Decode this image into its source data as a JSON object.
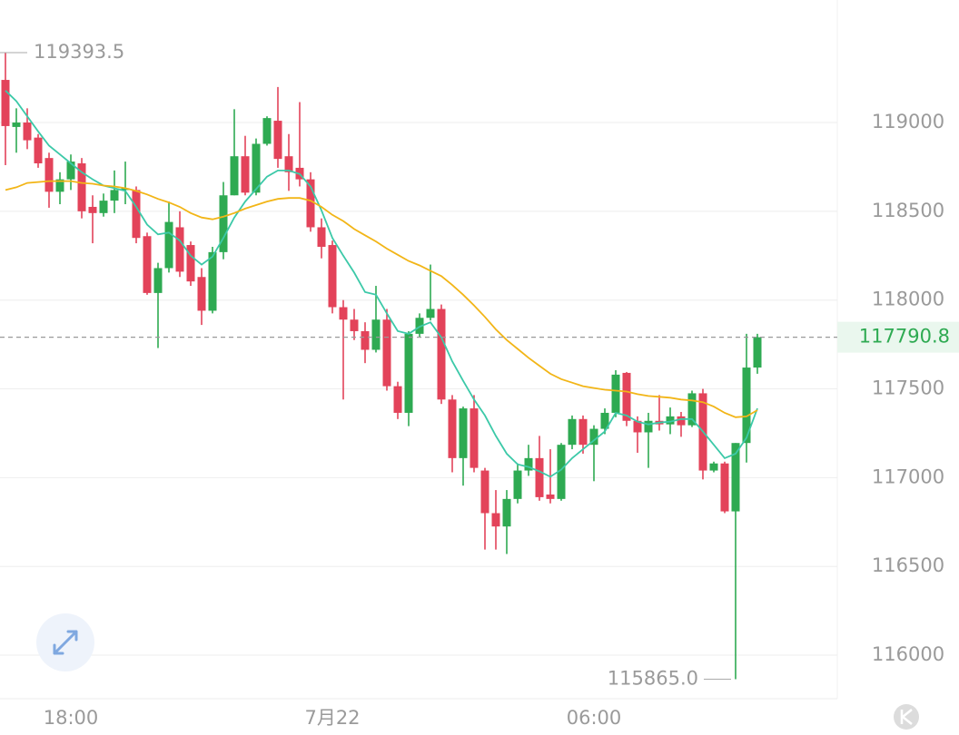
{
  "chart_data": {
    "type": "candlestick",
    "categories": [
      null,
      null,
      null,
      null,
      null,
      null,
      "18:00",
      null,
      null,
      null,
      null,
      null,
      null,
      null,
      null,
      null,
      null,
      null,
      null,
      null,
      null,
      null,
      null,
      null,
      null,
      null,
      null,
      null,
      null,
      null,
      "7月22",
      null,
      null,
      null,
      null,
      null,
      null,
      null,
      null,
      null,
      null,
      null,
      null,
      null,
      null,
      null,
      null,
      null,
      null,
      null,
      null,
      null,
      null,
      null,
      "06:00",
      null,
      null,
      null,
      null,
      null,
      null,
      null,
      null,
      null,
      null,
      null,
      null,
      null,
      null,
      null
    ],
    "open": [
      119240,
      118975,
      119000,
      118915,
      118800,
      118610,
      118680,
      118770,
      118525,
      118490,
      118560,
      118620,
      118620,
      118360,
      118040,
      118180,
      118410,
      118310,
      118130,
      117940,
      118270,
      118590,
      118810,
      118605,
      118880,
      119010,
      118810,
      118745,
      118680,
      118410,
      118310,
      117960,
      117890,
      117825,
      117720,
      117890,
      117515,
      117365,
      117810,
      117900,
      117950,
      117440,
      117110,
      117390,
      117040,
      116800,
      116725,
      116880,
      117040,
      117110,
      116905,
      116880,
      117185,
      117330,
      117185,
      117275,
      117365,
      117590,
      117320,
      117255,
      117320,
      117300,
      117345,
      117295,
      117475,
      117040,
      117080,
      116810,
      117195,
      117620
    ],
    "high": [
      119393.5,
      119080,
      119080,
      118935,
      118830,
      118720,
      118820,
      118800,
      118590,
      118600,
      118730,
      118780,
      118640,
      118380,
      118210,
      118555,
      118500,
      118330,
      118180,
      118300,
      118665,
      119075,
      118925,
      118910,
      119035,
      119200,
      118935,
      119115,
      118720,
      118460,
      118335,
      118000,
      117950,
      117875,
      118080,
      117950,
      117540,
      117825,
      117925,
      118200,
      117975,
      117465,
      117400,
      117465,
      117055,
      116930,
      116930,
      117080,
      117185,
      117235,
      117160,
      117195,
      117350,
      117350,
      117295,
      117390,
      117605,
      117595,
      117345,
      117365,
      117465,
      117395,
      117370,
      117490,
      117500,
      117090,
      117090,
      117195,
      117810,
      117810
    ],
    "low": [
      118760,
      118830,
      118850,
      118745,
      118520,
      118540,
      118620,
      118460,
      118320,
      118470,
      118490,
      118540,
      118320,
      118030,
      117730,
      118155,
      118130,
      118080,
      117860,
      117925,
      118230,
      118590,
      118590,
      118590,
      118870,
      118745,
      118615,
      118640,
      118385,
      118235,
      117925,
      117440,
      117775,
      117645,
      117705,
      117490,
      117330,
      117290,
      117790,
      117885,
      117415,
      117030,
      116955,
      117030,
      116595,
      116595,
      116570,
      116855,
      117010,
      116870,
      116855,
      116870,
      117160,
      117135,
      116980,
      117245,
      117340,
      117290,
      117140,
      117055,
      117265,
      117245,
      117230,
      117285,
      116990,
      117030,
      116800,
      115865,
      117085,
      117585
    ],
    "close": [
      118980,
      119000,
      118900,
      118770,
      118610,
      118680,
      118780,
      118500,
      118490,
      118560,
      118620,
      118630,
      118350,
      118040,
      118180,
      118440,
      118160,
      118105,
      117940,
      118270,
      118590,
      118810,
      118605,
      118880,
      119025,
      118795,
      118720,
      118680,
      118410,
      118300,
      117960,
      117890,
      117825,
      117720,
      117890,
      117515,
      117365,
      117810,
      117900,
      117950,
      117440,
      117110,
      117390,
      117055,
      116800,
      116725,
      116880,
      117040,
      117110,
      116890,
      116880,
      117185,
      117330,
      117185,
      117275,
      117365,
      117580,
      117320,
      117255,
      117320,
      117300,
      117345,
      117295,
      117475,
      117040,
      117080,
      116810,
      117195,
      117620,
      117790.8
    ],
    "up_color": "#2eaa52",
    "down_color": "#e3435a",
    "lines": [
      {
        "color": "#3cc9a8",
        "values": [
          119180,
          119120,
          119035,
          118950,
          118870,
          118820,
          118770,
          118720,
          118680,
          118645,
          118630,
          118615,
          118525,
          118425,
          118370,
          118380,
          118335,
          118250,
          118200,
          118245,
          118350,
          118465,
          118555,
          118625,
          118695,
          118730,
          118730,
          118710,
          118640,
          118505,
          118350,
          118250,
          118155,
          118045,
          118030,
          117925,
          117825,
          117810,
          117850,
          117875,
          117790,
          117655,
          117545,
          117440,
          117350,
          117235,
          117135,
          117075,
          117060,
          117035,
          117005,
          117045,
          117110,
          117160,
          117210,
          117260,
          117365,
          117350,
          117315,
          117300,
          117310,
          117315,
          117330,
          117330,
          117260,
          117185,
          117110,
          117135,
          117225,
          117390
        ]
      },
      {
        "color": "#f2b517",
        "values": [
          118620,
          118635,
          118660,
          118665,
          118670,
          118670,
          118670,
          118660,
          118655,
          118645,
          118640,
          118630,
          118615,
          118595,
          118570,
          118550,
          118525,
          118490,
          118465,
          118455,
          118470,
          118490,
          118515,
          118535,
          118555,
          118570,
          118575,
          118575,
          118560,
          118525,
          118480,
          118445,
          118400,
          118365,
          118330,
          118290,
          118255,
          118220,
          118195,
          118165,
          118135,
          118085,
          118030,
          117970,
          117905,
          117835,
          117775,
          117725,
          117675,
          117630,
          117585,
          117555,
          117535,
          117515,
          117505,
          117495,
          117490,
          117485,
          117470,
          117460,
          117455,
          117450,
          117440,
          117435,
          117425,
          117400,
          117365,
          117340,
          117345,
          117380
        ]
      }
    ],
    "ylim": [
      115755,
      119690
    ],
    "yticks": [
      116000,
      116500,
      117000,
      117500,
      118000,
      118500,
      119000
    ],
    "grid": true,
    "high_label": {
      "value": 119393.5,
      "label": "119393.5"
    },
    "low_label": {
      "value": 115865,
      "label": "115865.0"
    },
    "last_price": {
      "value": 117790.8,
      "label": "117790.8"
    }
  }
}
